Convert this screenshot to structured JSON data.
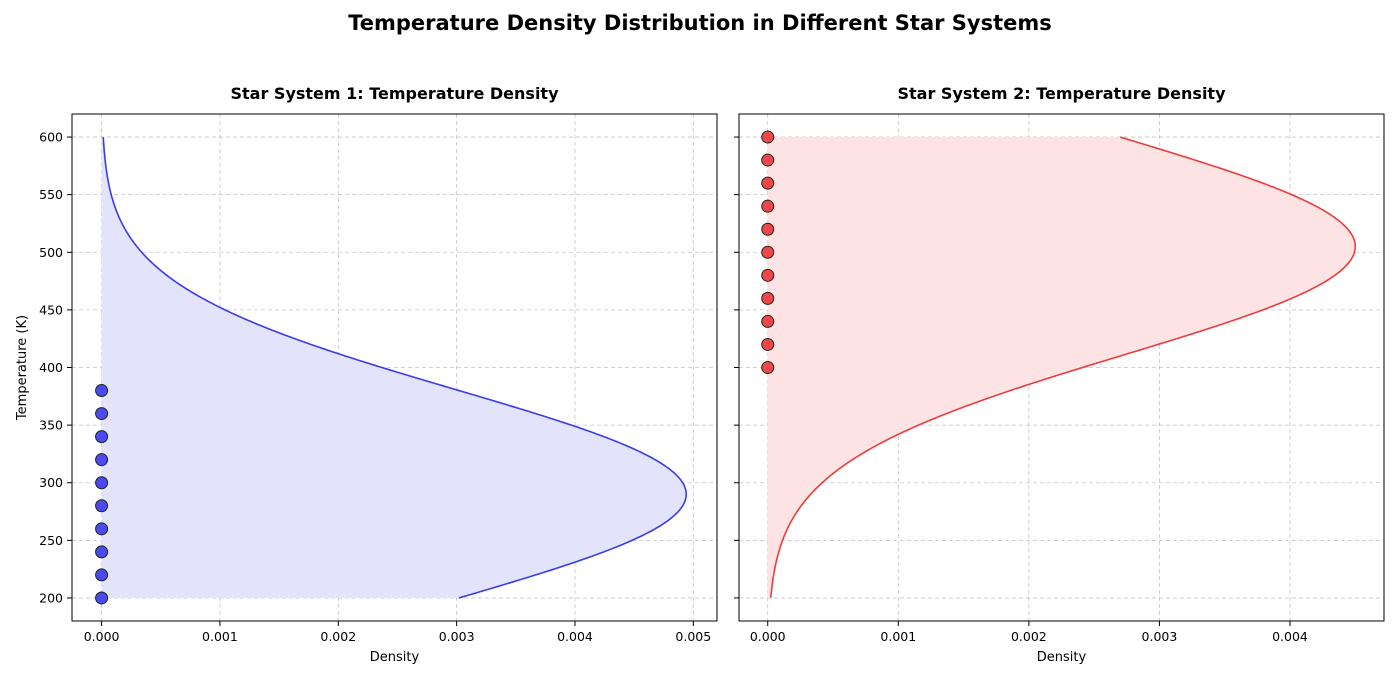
{
  "figure": {
    "title": "Temperature Density Distribution in Different Star Systems"
  },
  "chart_data": [
    {
      "type": "line",
      "title": "Star System 1: Temperature Density",
      "xlabel": "Density",
      "ylabel": "Temperature (K)",
      "xlim": [
        -0.00025,
        0.0052
      ],
      "ylim": [
        180,
        620
      ],
      "xticks": [
        "0.000",
        "0.001",
        "0.002",
        "0.003",
        "0.004",
        "0.005"
      ],
      "yticks": [
        "200",
        "250",
        "300",
        "350",
        "400",
        "450",
        "500",
        "550",
        "600"
      ],
      "grid": true,
      "line_color": "#3b3bee",
      "fill_color": "#e3e3fc",
      "marker_color": "#4a4aee",
      "density_curve": {
        "distribution": "normal",
        "temperature_range": [
          200,
          600
        ],
        "peak_temperature": 290,
        "peak_density": 0.00494,
        "density_at_200": 0.00302
      },
      "points": {
        "temperature": [
          200,
          220,
          240,
          260,
          280,
          300,
          320,
          340,
          360,
          380
        ],
        "density": [
          0,
          0,
          0,
          0,
          0,
          0,
          0,
          0,
          0,
          0
        ]
      }
    },
    {
      "type": "line",
      "title": "Star System 2: Temperature Density",
      "xlabel": "Density",
      "ylabel": "",
      "xlim": [
        -0.00022,
        0.00472
      ],
      "ylim": [
        180,
        620
      ],
      "xticks": [
        "0.000",
        "0.001",
        "0.002",
        "0.003",
        "0.004"
      ],
      "yticks": [
        "200",
        "250",
        "300",
        "350",
        "400",
        "450",
        "500",
        "550",
        "600"
      ],
      "grid": true,
      "line_color": "#ee3b3b",
      "fill_color": "#fde3e4",
      "marker_color": "#ee4747",
      "density_curve": {
        "distribution": "normal",
        "temperature_range": [
          200,
          600
        ],
        "peak_temperature": 505,
        "peak_density": 0.0045,
        "density_at_600": 0.0027
      },
      "points": {
        "temperature": [
          400,
          420,
          440,
          460,
          480,
          500,
          520,
          540,
          560,
          580,
          600
        ],
        "density": [
          0,
          0,
          0,
          0,
          0,
          0,
          0,
          0,
          0,
          0,
          0
        ]
      }
    }
  ]
}
